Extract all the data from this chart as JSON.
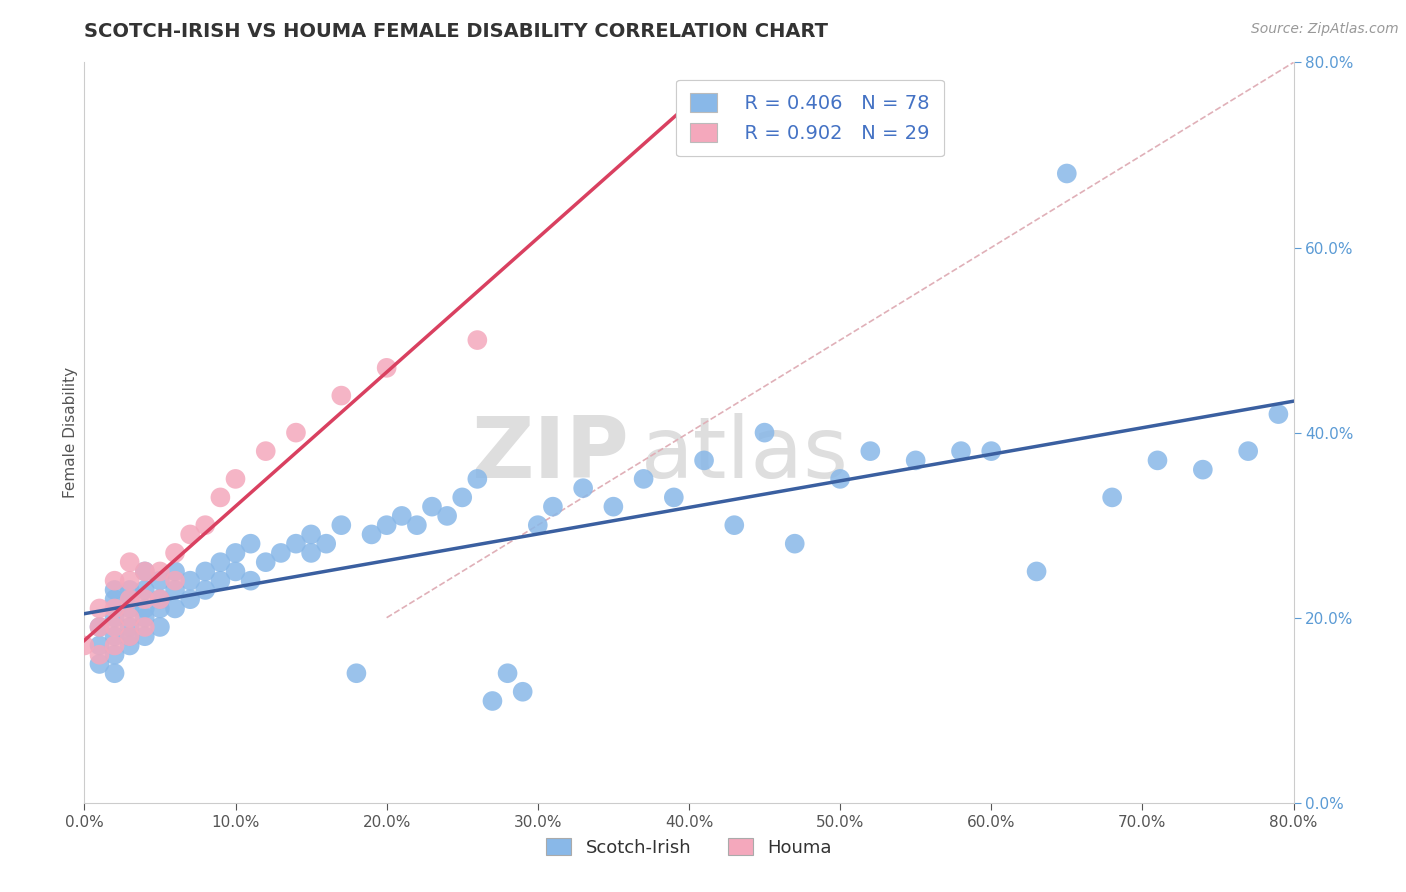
{
  "title": "SCOTCH-IRISH VS HOUMA FEMALE DISABILITY CORRELATION CHART",
  "source_text": "Source: ZipAtlas.com",
  "ylabel": "Female Disability",
  "xlim": [
    0.0,
    0.8
  ],
  "ylim": [
    0.0,
    0.8
  ],
  "xtick_vals": [
    0.0,
    0.1,
    0.2,
    0.3,
    0.4,
    0.5,
    0.6,
    0.7,
    0.8
  ],
  "ytick_vals": [
    0.0,
    0.2,
    0.4,
    0.6,
    0.8
  ],
  "scotch_irish_color": "#89B8E8",
  "houma_color": "#F4A8BC",
  "scotch_irish_line_color": "#3A5FA0",
  "houma_line_color": "#D94060",
  "diag_line_color": "#E0B0B8",
  "R_scotch": 0.406,
  "N_scotch": 78,
  "R_houma": 0.902,
  "N_houma": 29,
  "background_color": "#FFFFFF",
  "grid_color": "#DDDDDD",
  "watermark_color": "#E0E0E0",
  "title_color": "#333333",
  "source_color": "#999999",
  "ylabel_color": "#555555",
  "yaxis_tick_color": "#5B9BD5",
  "xaxis_tick_color": "#555555",
  "scotch_si_x": [
    0.01,
    0.01,
    0.01,
    0.02,
    0.02,
    0.02,
    0.02,
    0.02,
    0.02,
    0.03,
    0.03,
    0.03,
    0.03,
    0.03,
    0.03,
    0.04,
    0.04,
    0.04,
    0.04,
    0.04,
    0.05,
    0.05,
    0.05,
    0.05,
    0.06,
    0.06,
    0.06,
    0.07,
    0.07,
    0.08,
    0.08,
    0.09,
    0.09,
    0.1,
    0.1,
    0.11,
    0.11,
    0.12,
    0.13,
    0.14,
    0.15,
    0.15,
    0.16,
    0.17,
    0.18,
    0.19,
    0.2,
    0.21,
    0.22,
    0.23,
    0.24,
    0.25,
    0.26,
    0.27,
    0.28,
    0.29,
    0.3,
    0.31,
    0.33,
    0.35,
    0.37,
    0.39,
    0.41,
    0.43,
    0.45,
    0.47,
    0.5,
    0.52,
    0.55,
    0.58,
    0.6,
    0.63,
    0.65,
    0.68,
    0.71,
    0.74,
    0.77,
    0.79
  ],
  "scotch_si_y": [
    0.15,
    0.17,
    0.19,
    0.14,
    0.16,
    0.18,
    0.2,
    0.22,
    0.23,
    0.17,
    0.18,
    0.19,
    0.21,
    0.22,
    0.23,
    0.18,
    0.2,
    0.21,
    0.23,
    0.25,
    0.19,
    0.21,
    0.22,
    0.24,
    0.21,
    0.23,
    0.25,
    0.22,
    0.24,
    0.23,
    0.25,
    0.24,
    0.26,
    0.25,
    0.27,
    0.24,
    0.28,
    0.26,
    0.27,
    0.28,
    0.27,
    0.29,
    0.28,
    0.3,
    0.14,
    0.29,
    0.3,
    0.31,
    0.3,
    0.32,
    0.31,
    0.33,
    0.35,
    0.11,
    0.14,
    0.12,
    0.3,
    0.32,
    0.34,
    0.32,
    0.35,
    0.33,
    0.37,
    0.3,
    0.4,
    0.28,
    0.35,
    0.38,
    0.37,
    0.38,
    0.38,
    0.25,
    0.68,
    0.33,
    0.37,
    0.36,
    0.38,
    0.42
  ],
  "houma_x": [
    0.0,
    0.01,
    0.01,
    0.01,
    0.02,
    0.02,
    0.02,
    0.02,
    0.03,
    0.03,
    0.03,
    0.03,
    0.03,
    0.04,
    0.04,
    0.04,
    0.05,
    0.05,
    0.06,
    0.06,
    0.07,
    0.08,
    0.09,
    0.1,
    0.12,
    0.14,
    0.17,
    0.2,
    0.26
  ],
  "houma_y": [
    0.17,
    0.16,
    0.19,
    0.21,
    0.17,
    0.19,
    0.21,
    0.24,
    0.18,
    0.2,
    0.22,
    0.24,
    0.26,
    0.19,
    0.22,
    0.25,
    0.22,
    0.25,
    0.24,
    0.27,
    0.29,
    0.3,
    0.33,
    0.35,
    0.38,
    0.4,
    0.44,
    0.47,
    0.5
  ]
}
